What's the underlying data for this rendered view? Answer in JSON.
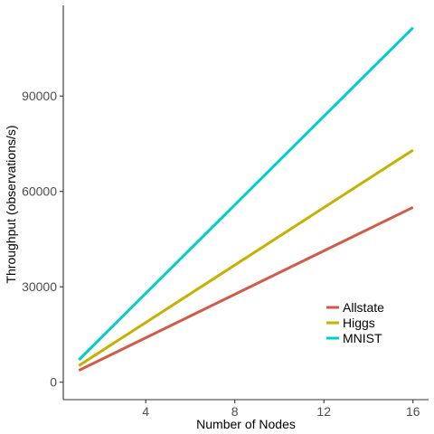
{
  "chart_data": {
    "type": "line",
    "xlabel": "Number of Nodes",
    "ylabel": "Throughput (observations/s)",
    "xlim": [
      0.3,
      16.7
    ],
    "ylim": [
      -5500,
      118500
    ],
    "xticks": [
      4,
      8,
      12,
      16
    ],
    "yticks": [
      0,
      30000,
      60000,
      90000
    ],
    "grid": false,
    "legend_position": "bottom-right",
    "series": [
      {
        "name": "Allstate",
        "color": "#d15b47",
        "x": [
          1,
          16
        ],
        "values": [
          3700,
          55000
        ]
      },
      {
        "name": "Higgs",
        "color": "#c7b000",
        "x": [
          1,
          16
        ],
        "values": [
          5200,
          73000
        ]
      },
      {
        "name": "MNIST",
        "color": "#00cdcd",
        "x": [
          1,
          16
        ],
        "values": [
          7000,
          111500
        ]
      }
    ]
  }
}
